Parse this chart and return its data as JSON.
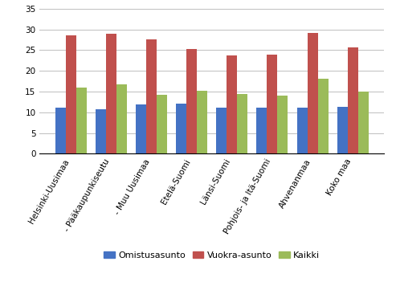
{
  "categories": [
    "Helsinki-Uusimaa",
    "- Pääkaupunkiseutu",
    "- Muu Uusimaa",
    "Etelä-Suomi",
    "Länsi-Suomi",
    "Pohjois- ja Itä-Suomi",
    "Ahvenanmaa",
    "Koko maa"
  ],
  "series": {
    "Omistusasunto": [
      11.2,
      10.8,
      11.9,
      12.1,
      11.2,
      11.2,
      11.2,
      11.4
    ],
    "Vuokra-asunto": [
      28.6,
      28.9,
      27.6,
      25.2,
      23.7,
      24.0,
      29.1,
      25.6
    ],
    "Kaikki": [
      15.9,
      16.8,
      14.3,
      15.2,
      14.5,
      14.1,
      18.1,
      15.0
    ]
  },
  "colors": {
    "Omistusasunto": "#4472C4",
    "Vuokra-asunto": "#C0504D",
    "Kaikki": "#9BBB59"
  },
  "ylim": [
    0,
    35
  ],
  "yticks": [
    0,
    5,
    10,
    15,
    20,
    25,
    30,
    35
  ],
  "bar_width": 0.26,
  "figsize": [
    4.93,
    3.61
  ],
  "dpi": 100,
  "grid_color": "#BEBEBE",
  "background_color": "#FFFFFF",
  "tick_fontsize": 7.5,
  "legend_fontsize": 8,
  "xlabel_rotation": 60
}
